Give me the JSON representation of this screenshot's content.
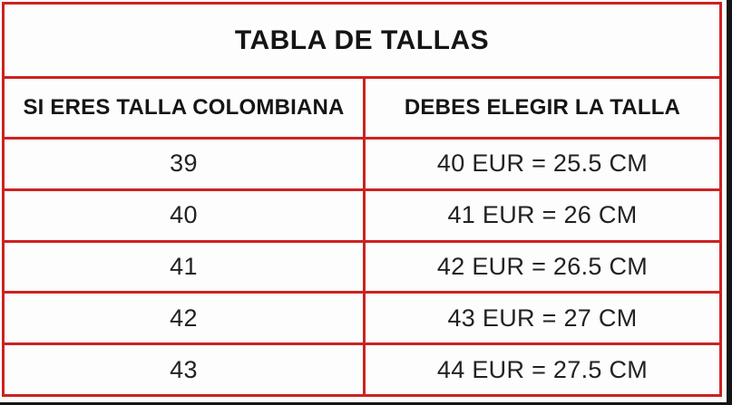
{
  "table": {
    "title": "TABLA DE TALLAS",
    "columns": [
      {
        "label": "SI ERES TALLA COLOMBIANA"
      },
      {
        "label": "DEBES ELEGIR LA TALLA"
      }
    ],
    "rows": [
      {
        "colombian_size": "39",
        "choose_size": "40 EUR = 25.5 CM"
      },
      {
        "colombian_size": "40",
        "choose_size": "41 EUR = 26 CM"
      },
      {
        "colombian_size": "41",
        "choose_size": "42 EUR = 26.5 CM"
      },
      {
        "colombian_size": "42",
        "choose_size": "43 EUR = 27 CM"
      },
      {
        "colombian_size": "43",
        "choose_size": "44 EUR = 27.5 CM"
      }
    ]
  },
  "colors": {
    "border_red": "#cc2222",
    "text_black": "#151515",
    "background": "#fdfdfd",
    "edge_black": "#141414"
  }
}
